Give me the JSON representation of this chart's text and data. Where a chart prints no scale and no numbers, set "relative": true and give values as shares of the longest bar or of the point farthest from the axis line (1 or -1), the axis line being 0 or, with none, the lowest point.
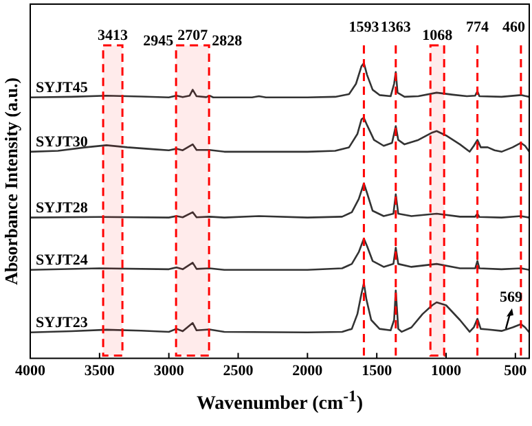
{
  "chart_data": {
    "type": "line",
    "xlabel": "Wavenumber (cm$^{-1}$)",
    "ylabel": "Absorbance Intensity (a.u.)",
    "relative": true,
    "legend": false,
    "marker": "none",
    "xlim": [
      4000,
      400
    ],
    "xticks": [
      4000,
      3500,
      3000,
      2500,
      2000,
      1500,
      1000,
      500
    ],
    "series": [
      {
        "name": "SYJT45",
        "color": "#333333",
        "x": [
          4000,
          3700,
          3450,
          3200,
          3000,
          2945,
          2900,
          2850,
          2828,
          2800,
          2730,
          2707,
          2680,
          2400,
          2350,
          2300,
          2000,
          1800,
          1700,
          1650,
          1610,
          1593,
          1570,
          1530,
          1480,
          1400,
          1375,
          1363,
          1350,
          1300,
          1200,
          1068,
          950,
          850,
          790,
          774,
          760,
          600,
          460,
          400
        ],
        "values": [
          0.884,
          0.886,
          0.89,
          0.887,
          0.884,
          0.89,
          0.885,
          0.89,
          0.91,
          0.888,
          0.885,
          0.89,
          0.884,
          0.884,
          0.888,
          0.884,
          0.884,
          0.886,
          0.895,
          0.93,
          0.99,
          1.0,
          0.96,
          0.91,
          0.892,
          0.888,
          0.93,
          0.97,
          0.9,
          0.886,
          0.888,
          0.9,
          0.893,
          0.888,
          0.89,
          0.905,
          0.888,
          0.886,
          0.892,
          0.886
        ]
      },
      {
        "name": "SYJT30",
        "color": "#333333",
        "x": [
          4000,
          3800,
          3600,
          3450,
          3300,
          3100,
          3000,
          2945,
          2900,
          2828,
          2800,
          2707,
          2600,
          2200,
          2000,
          1800,
          1700,
          1640,
          1610,
          1593,
          1570,
          1520,
          1450,
          1390,
          1363,
          1345,
          1300,
          1200,
          1100,
          1068,
          1000,
          900,
          830,
          800,
          774,
          750,
          700,
          650,
          600,
          520,
          460,
          430,
          400
        ],
        "values": [
          0.7,
          0.703,
          0.715,
          0.722,
          0.715,
          0.708,
          0.705,
          0.71,
          0.705,
          0.725,
          0.706,
          0.706,
          0.7,
          0.7,
          0.7,
          0.703,
          0.715,
          0.76,
          0.81,
          0.815,
          0.79,
          0.74,
          0.72,
          0.73,
          0.787,
          0.74,
          0.725,
          0.74,
          0.765,
          0.77,
          0.755,
          0.725,
          0.7,
          0.72,
          0.74,
          0.715,
          0.715,
          0.705,
          0.7,
          0.715,
          0.73,
          0.72,
          0.7
        ]
      },
      {
        "name": "SYJT28",
        "color": "#333333",
        "x": [
          4000,
          3500,
          3000,
          2945,
          2900,
          2828,
          2800,
          2707,
          2600,
          2350,
          2000,
          1750,
          1680,
          1630,
          1593,
          1570,
          1530,
          1450,
          1380,
          1363,
          1345,
          1250,
          1068,
          900,
          790,
          774,
          760,
          600,
          460,
          400
        ],
        "values": [
          0.477,
          0.479,
          0.477,
          0.482,
          0.478,
          0.495,
          0.478,
          0.48,
          0.477,
          0.482,
          0.477,
          0.48,
          0.495,
          0.54,
          0.593,
          0.56,
          0.5,
          0.482,
          0.49,
          0.556,
          0.49,
          0.482,
          0.49,
          0.48,
          0.48,
          0.49,
          0.479,
          0.477,
          0.482,
          0.477
        ]
      },
      {
        "name": "SYJT24",
        "color": "#333333",
        "x": [
          4000,
          3500,
          3000,
          2945,
          2900,
          2828,
          2800,
          2707,
          2600,
          2000,
          1750,
          1680,
          1630,
          1593,
          1570,
          1530,
          1450,
          1380,
          1363,
          1345,
          1250,
          1068,
          900,
          790,
          774,
          760,
          600,
          460,
          400
        ],
        "values": [
          0.3,
          0.305,
          0.302,
          0.308,
          0.302,
          0.324,
          0.303,
          0.305,
          0.3,
          0.3,
          0.305,
          0.32,
          0.36,
          0.406,
          0.38,
          0.33,
          0.31,
          0.32,
          0.375,
          0.32,
          0.31,
          0.32,
          0.305,
          0.305,
          0.33,
          0.305,
          0.302,
          0.305,
          0.3
        ]
      },
      {
        "name": "SYJT23",
        "color": "#333333",
        "x": [
          4000,
          3700,
          3450,
          3200,
          3000,
          2945,
          2900,
          2828,
          2800,
          2707,
          2600,
          2000,
          1750,
          1680,
          1640,
          1610,
          1593,
          1575,
          1540,
          1480,
          1400,
          1375,
          1363,
          1345,
          1320,
          1250,
          1170,
          1100,
          1068,
          1000,
          900,
          830,
          800,
          774,
          750,
          700,
          600,
          520,
          460,
          430,
          400
        ],
        "values": [
          0.088,
          0.092,
          0.097,
          0.094,
          0.09,
          0.1,
          0.092,
          0.12,
          0.095,
          0.098,
          0.09,
          0.088,
          0.09,
          0.1,
          0.15,
          0.22,
          0.255,
          0.2,
          0.13,
          0.1,
          0.095,
          0.13,
          0.23,
          0.1,
          0.09,
          0.105,
          0.15,
          0.18,
          0.19,
          0.18,
          0.13,
          0.09,
          0.105,
          0.134,
          0.1,
          0.098,
          0.093,
          0.105,
          0.116,
          0.105,
          0.088
        ]
      }
    ],
    "ref_lines": [
      {
        "axis": "x",
        "value": 1593,
        "label": "1593",
        "color": "#ff0000",
        "line_style": "dashed"
      },
      {
        "axis": "x",
        "value": 1363,
        "label": "1363",
        "color": "#ff0000",
        "line_style": "dashed"
      },
      {
        "axis": "x",
        "value": 774,
        "label": "774",
        "color": "#ff0000",
        "line_style": "dashed"
      },
      {
        "axis": "x",
        "value": 460,
        "label": "460",
        "color": "#ff0000",
        "line_style": "dashed"
      }
    ],
    "bands": [
      {
        "axis": "x",
        "from": 3474,
        "to": 3335,
        "label": "3413",
        "color": "#ff0000"
      },
      {
        "axis": "x",
        "from": 2948,
        "to": 2710,
        "label": "2707",
        "color": "#ff0000"
      },
      {
        "axis": "x",
        "from": 1113,
        "to": 1014,
        "label": "1068",
        "color": "#ff0000"
      }
    ],
    "annotations": [
      "2945",
      "2828",
      {
        "text": "569",
        "x": 569,
        "y": 0.1
      }
    ]
  }
}
